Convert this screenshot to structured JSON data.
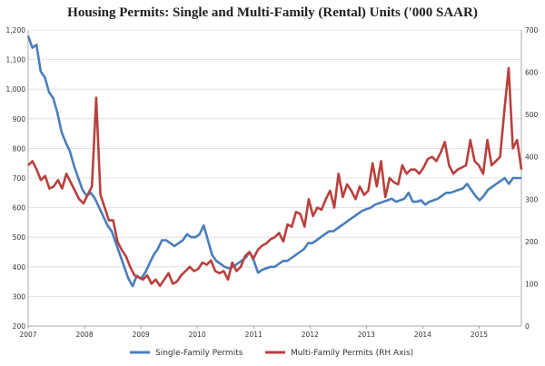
{
  "chart_data": {
    "type": "line",
    "title": "Housing Permits: Single and Multi-Family (Rental) Units ('000 SAAR)",
    "x_tick_labels": [
      "2007",
      "2008",
      "2009",
      "2010",
      "2011",
      "2012",
      "2013",
      "2014",
      "2015"
    ],
    "y_left": {
      "ylim": [
        200,
        1200
      ],
      "ticks": [
        "200",
        "300",
        "400",
        "500",
        "600",
        "700",
        "800",
        "900",
        "1,000",
        "1,100",
        "1,200"
      ]
    },
    "y_right": {
      "ylim": [
        0,
        700
      ],
      "ticks": [
        "0",
        "100",
        "200",
        "300",
        "400",
        "500",
        "600",
        "700"
      ]
    },
    "x_start": 2007.0,
    "x_end": 2015.75,
    "grid": true,
    "legend_position": "bottom",
    "series": [
      {
        "name": "Single-Family Permits",
        "axis": "left",
        "color": "#4a7ebb",
        "values": [
          1180,
          1140,
          1150,
          1060,
          1040,
          990,
          970,
          920,
          855,
          820,
          790,
          740,
          700,
          660,
          640,
          650,
          630,
          600,
          570,
          540,
          520,
          480,
          440,
          400,
          360,
          335,
          370,
          360,
          380,
          410,
          440,
          460,
          490,
          490,
          480,
          470,
          480,
          490,
          510,
          500,
          500,
          510,
          540,
          490,
          440,
          420,
          410,
          400,
          395,
          400,
          410,
          420,
          430,
          450,
          420,
          380,
          390,
          395,
          400,
          400,
          410,
          420,
          420,
          430,
          440,
          450,
          460,
          480,
          480,
          490,
          500,
          510,
          520,
          520,
          530,
          540,
          550,
          560,
          570,
          580,
          590,
          595,
          600,
          610,
          615,
          620,
          625,
          630,
          620,
          625,
          630,
          650,
          620,
          620,
          625,
          610,
          620,
          625,
          630,
          640,
          650,
          650,
          655,
          660,
          665,
          680,
          660,
          640,
          625,
          640,
          660,
          670,
          680,
          690,
          700,
          680,
          700,
          700,
          700
        ]
      },
      {
        "name": "Multi-Family Permits (RH Axis)",
        "axis": "right",
        "color": "#b9403e",
        "values": [
          380,
          390,
          370,
          345,
          355,
          325,
          330,
          345,
          325,
          360,
          340,
          320,
          300,
          290,
          310,
          330,
          540,
          310,
          280,
          250,
          250,
          200,
          180,
          165,
          140,
          120,
          115,
          110,
          120,
          100,
          110,
          95,
          110,
          125,
          100,
          105,
          120,
          130,
          140,
          130,
          135,
          150,
          145,
          155,
          130,
          125,
          130,
          110,
          150,
          130,
          140,
          165,
          175,
          160,
          180,
          190,
          195,
          205,
          210,
          220,
          200,
          240,
          235,
          270,
          265,
          235,
          300,
          260,
          280,
          275,
          300,
          320,
          280,
          360,
          305,
          335,
          320,
          300,
          330,
          310,
          320,
          385,
          330,
          390,
          305,
          350,
          340,
          335,
          380,
          360,
          370,
          370,
          360,
          375,
          395,
          400,
          390,
          410,
          435,
          380,
          360,
          370,
          375,
          380,
          440,
          390,
          380,
          360,
          440,
          380,
          390,
          400,
          510,
          610,
          420,
          440,
          370
        ]
      }
    ]
  }
}
